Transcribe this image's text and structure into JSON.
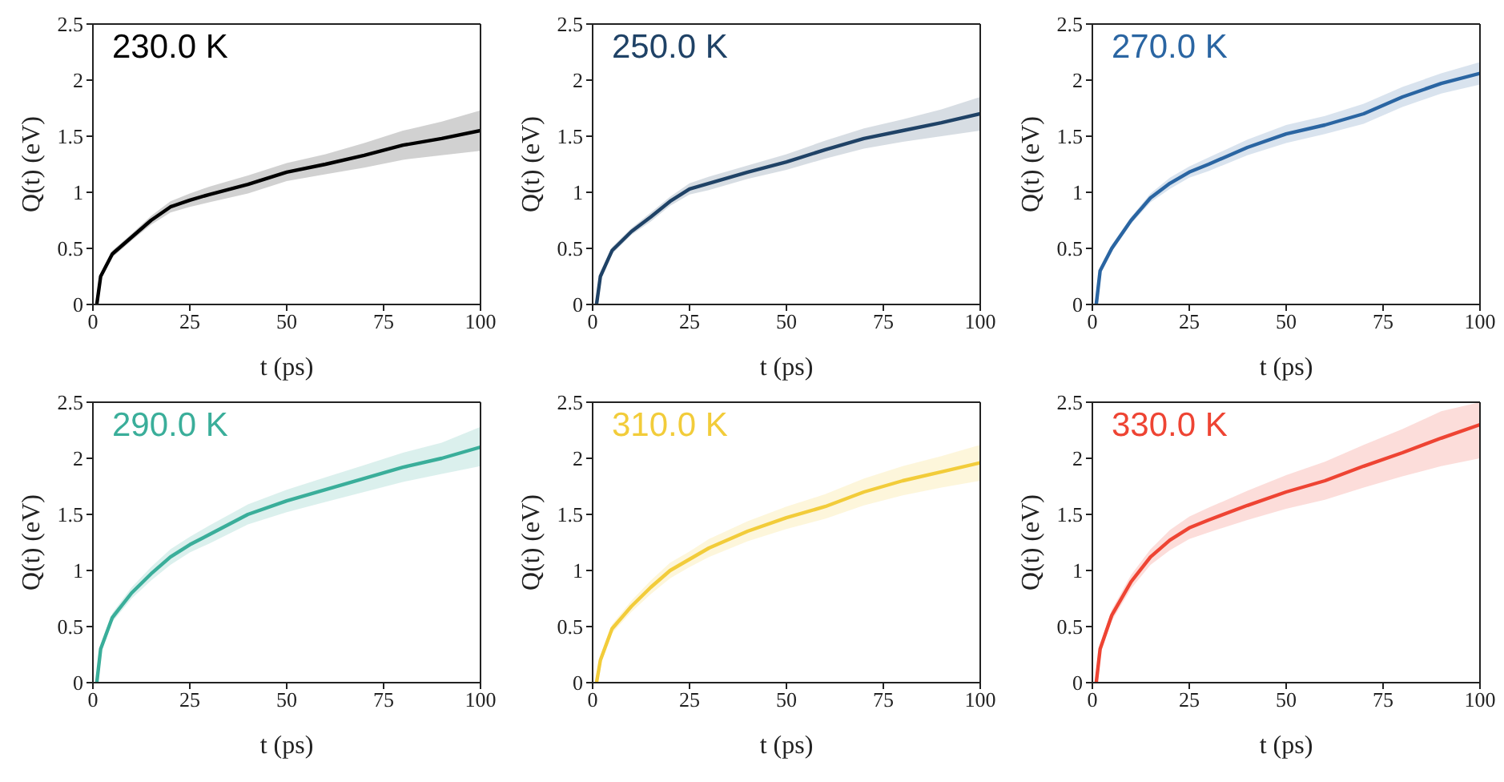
{
  "chart_data": [
    {
      "type": "line",
      "title": "230.0 K",
      "xlabel": "t (ps)",
      "ylabel": "Q(t) (eV)",
      "x": [
        1,
        2,
        5,
        10,
        15,
        20,
        25,
        30,
        40,
        50,
        60,
        70,
        80,
        90,
        100
      ],
      "xlim": [
        0,
        100
      ],
      "ylim": [
        0,
        2.5
      ],
      "xticks": [
        0,
        25,
        50,
        75,
        100
      ],
      "yticks": [
        0,
        0.5,
        1,
        1.5,
        2,
        2.5
      ],
      "series": [
        {
          "color": "#000000",
          "values": [
            0,
            0.25,
            0.45,
            0.6,
            0.75,
            0.87,
            0.93,
            0.98,
            1.07,
            1.18,
            1.25,
            1.33,
            1.42,
            1.48,
            1.55
          ],
          "lower": [
            0,
            0.23,
            0.42,
            0.57,
            0.71,
            0.82,
            0.87,
            0.91,
            0.99,
            1.1,
            1.16,
            1.22,
            1.29,
            1.33,
            1.37
          ],
          "upper": [
            0,
            0.27,
            0.48,
            0.63,
            0.79,
            0.92,
            0.99,
            1.05,
            1.15,
            1.26,
            1.34,
            1.44,
            1.55,
            1.63,
            1.73
          ]
        }
      ]
    },
    {
      "type": "line",
      "title": "250.0 K",
      "xlabel": "t (ps)",
      "ylabel": "Q(t) (eV)",
      "x": [
        1,
        2,
        5,
        10,
        15,
        20,
        25,
        30,
        40,
        50,
        60,
        70,
        80,
        90,
        100
      ],
      "xlim": [
        0,
        100
      ],
      "ylim": [
        0,
        2.5
      ],
      "xticks": [
        0,
        25,
        50,
        75,
        100
      ],
      "yticks": [
        0,
        0.5,
        1,
        1.5,
        2,
        2.5
      ],
      "series": [
        {
          "color": "#1f4266",
          "values": [
            0,
            0.25,
            0.48,
            0.65,
            0.78,
            0.92,
            1.03,
            1.08,
            1.18,
            1.27,
            1.38,
            1.48,
            1.55,
            1.62,
            1.7
          ],
          "lower": [
            0,
            0.23,
            0.45,
            0.62,
            0.74,
            0.88,
            0.98,
            1.02,
            1.12,
            1.2,
            1.3,
            1.39,
            1.45,
            1.5,
            1.55
          ],
          "upper": [
            0,
            0.27,
            0.51,
            0.68,
            0.82,
            0.96,
            1.08,
            1.14,
            1.24,
            1.34,
            1.46,
            1.57,
            1.65,
            1.74,
            1.85
          ]
        }
      ]
    },
    {
      "type": "line",
      "title": "270.0 K",
      "xlabel": "t (ps)",
      "ylabel": "Q(t) (eV)",
      "x": [
        1,
        2,
        5,
        10,
        15,
        20,
        25,
        30,
        40,
        50,
        60,
        70,
        80,
        90,
        100
      ],
      "xlim": [
        0,
        100
      ],
      "ylim": [
        0,
        2.5
      ],
      "xticks": [
        0,
        25,
        50,
        75,
        100
      ],
      "yticks": [
        0,
        0.5,
        1,
        1.5,
        2,
        2.5
      ],
      "series": [
        {
          "color": "#2a65a2",
          "values": [
            0,
            0.3,
            0.5,
            0.75,
            0.95,
            1.08,
            1.18,
            1.25,
            1.4,
            1.52,
            1.6,
            1.7,
            1.85,
            1.97,
            2.06
          ],
          "lower": [
            0,
            0.28,
            0.47,
            0.72,
            0.91,
            1.03,
            1.13,
            1.19,
            1.33,
            1.44,
            1.52,
            1.61,
            1.76,
            1.88,
            1.96
          ],
          "upper": [
            0,
            0.32,
            0.53,
            0.78,
            0.99,
            1.13,
            1.23,
            1.31,
            1.47,
            1.6,
            1.68,
            1.79,
            1.94,
            2.06,
            2.16
          ]
        }
      ]
    },
    {
      "type": "line",
      "title": "290.0 K",
      "xlabel": "t (ps)",
      "ylabel": "Q(t) (eV)",
      "x": [
        1,
        2,
        5,
        10,
        15,
        20,
        25,
        30,
        40,
        50,
        60,
        70,
        80,
        90,
        100
      ],
      "xlim": [
        0,
        100
      ],
      "ylim": [
        0,
        2.5
      ],
      "xticks": [
        0,
        25,
        50,
        75,
        100
      ],
      "yticks": [
        0,
        0.5,
        1,
        1.5,
        2,
        2.5
      ],
      "series": [
        {
          "color": "#3aae9a",
          "values": [
            0,
            0.3,
            0.58,
            0.8,
            0.97,
            1.12,
            1.23,
            1.32,
            1.5,
            1.62,
            1.72,
            1.82,
            1.92,
            2.0,
            2.1
          ],
          "lower": [
            0,
            0.28,
            0.54,
            0.75,
            0.91,
            1.05,
            1.16,
            1.24,
            1.41,
            1.52,
            1.61,
            1.7,
            1.79,
            1.86,
            1.93
          ],
          "upper": [
            0,
            0.32,
            0.62,
            0.85,
            1.03,
            1.19,
            1.3,
            1.4,
            1.59,
            1.72,
            1.83,
            1.94,
            2.05,
            2.14,
            2.28
          ]
        }
      ]
    },
    {
      "type": "line",
      "title": "310.0 K",
      "xlabel": "t (ps)",
      "ylabel": "Q(t) (eV)",
      "x": [
        1,
        2,
        5,
        10,
        15,
        20,
        25,
        30,
        40,
        50,
        60,
        70,
        80,
        90,
        100
      ],
      "xlim": [
        0,
        100
      ],
      "ylim": [
        0,
        2.5
      ],
      "xticks": [
        0,
        25,
        50,
        75,
        100
      ],
      "yticks": [
        0,
        0.5,
        1,
        1.5,
        2,
        2.5
      ],
      "series": [
        {
          "color": "#f2cc3a",
          "values": [
            0,
            0.2,
            0.48,
            0.68,
            0.85,
            1.0,
            1.1,
            1.2,
            1.35,
            1.47,
            1.57,
            1.7,
            1.8,
            1.88,
            1.96
          ],
          "lower": [
            0,
            0.18,
            0.44,
            0.63,
            0.79,
            0.93,
            1.03,
            1.12,
            1.26,
            1.37,
            1.46,
            1.58,
            1.67,
            1.74,
            1.8
          ],
          "upper": [
            0,
            0.22,
            0.52,
            0.73,
            0.91,
            1.07,
            1.17,
            1.28,
            1.44,
            1.57,
            1.68,
            1.82,
            1.93,
            2.02,
            2.12
          ]
        }
      ]
    },
    {
      "type": "line",
      "title": "330.0 K",
      "xlabel": "t (ps)",
      "ylabel": "Q(t) (eV)",
      "x": [
        1,
        2,
        5,
        10,
        15,
        20,
        25,
        30,
        40,
        50,
        60,
        70,
        80,
        90,
        100
      ],
      "xlim": [
        0,
        100
      ],
      "ylim": [
        0,
        2.5
      ],
      "xticks": [
        0,
        25,
        50,
        75,
        100
      ],
      "yticks": [
        0,
        0.5,
        1,
        1.5,
        2,
        2.5
      ],
      "series": [
        {
          "color": "#ee4433",
          "values": [
            0,
            0.3,
            0.6,
            0.9,
            1.12,
            1.27,
            1.38,
            1.45,
            1.58,
            1.7,
            1.8,
            1.93,
            2.05,
            2.18,
            2.3
          ],
          "lower": [
            0,
            0.27,
            0.55,
            0.84,
            1.05,
            1.18,
            1.28,
            1.34,
            1.45,
            1.55,
            1.63,
            1.74,
            1.84,
            1.93,
            2.0
          ],
          "upper": [
            0,
            0.33,
            0.65,
            0.96,
            1.19,
            1.36,
            1.48,
            1.56,
            1.71,
            1.85,
            1.97,
            2.12,
            2.26,
            2.42,
            2.5
          ]
        }
      ]
    }
  ]
}
